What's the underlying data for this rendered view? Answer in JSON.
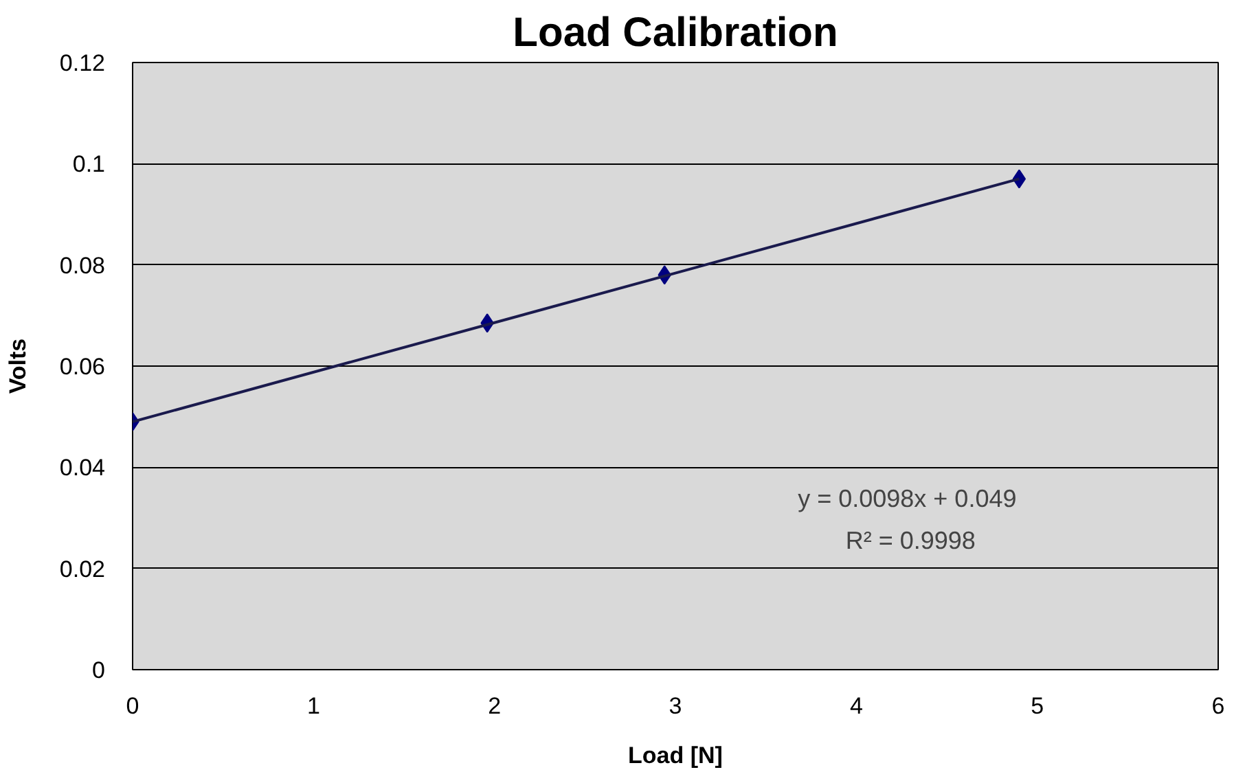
{
  "chart_data": {
    "type": "scatter",
    "title": "Load Calibration",
    "xlabel": "Load [N]",
    "ylabel": "Volts",
    "series": [
      {
        "color": "#000080",
        "x": [
          0,
          1.96,
          2.94,
          4.9
        ],
        "values": [
          0.049,
          0.0685,
          0.078,
          0.097
        ],
        "marker": "diamond"
      },
      {
        "type": "line",
        "color": "#1a1a4d",
        "x": [
          0,
          4.9
        ],
        "values": [
          0.049,
          0.097
        ],
        "marker": "none",
        "line_style": "solid"
      }
    ],
    "xlim": [
      0,
      6
    ],
    "xticks": [
      0,
      1,
      2,
      3,
      4,
      5,
      6
    ],
    "ylim": [
      0,
      0.12
    ],
    "yticks": [
      0,
      0.02,
      0.04,
      0.06,
      0.08,
      0.1,
      0.12
    ],
    "grid": "y",
    "annotations": [
      "y = 0.0098x  + 0.049",
      "R² = 0.9998"
    ]
  }
}
